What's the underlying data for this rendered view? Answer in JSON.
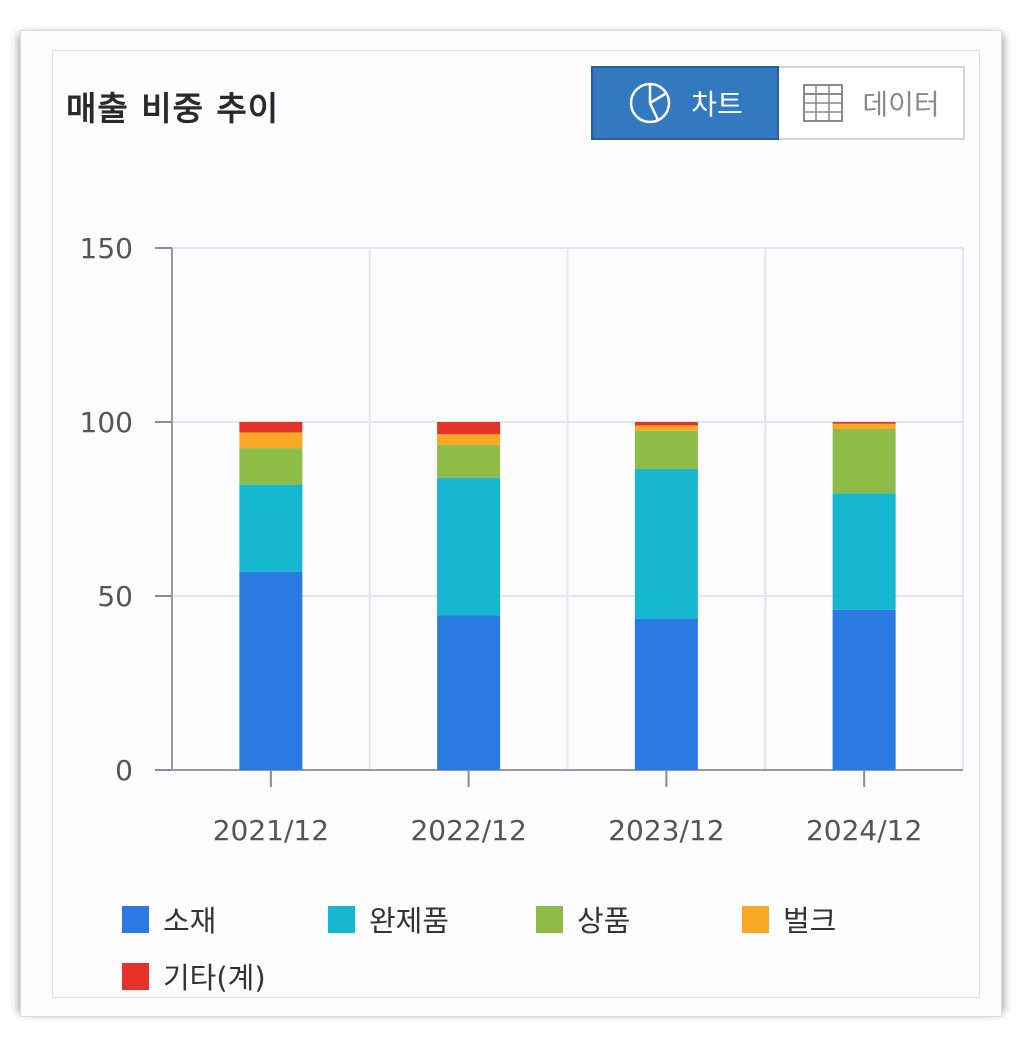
{
  "header": {
    "title": "매출 비중 추이"
  },
  "toggle": {
    "chart_label": "차트",
    "data_label": "데이터",
    "active": "chart",
    "chart_icon": "pie-chart-icon",
    "data_icon": "table-grid-icon"
  },
  "colors": {
    "소재": "#2a7ae2",
    "완제품": "#15b7cf",
    "상품": "#8fbb47",
    "벌크": "#f9a825",
    "기타(계)": "#e5322a",
    "active_button": "#3379bf"
  },
  "chart_data": {
    "type": "bar",
    "stacked": true,
    "title": "매출 비중 추이",
    "xlabel": "",
    "ylabel": "",
    "ylim": [
      0,
      150
    ],
    "yticks": [
      0,
      50,
      100,
      150
    ],
    "grid": true,
    "legend_position": "bottom",
    "categories": [
      "2021/12",
      "2022/12",
      "2023/12",
      "2024/12"
    ],
    "series": [
      {
        "name": "소재",
        "values": [
          57.0,
          44.5,
          43.5,
          46.0
        ]
      },
      {
        "name": "완제품",
        "values": [
          25.0,
          39.5,
          43.0,
          33.5
        ]
      },
      {
        "name": "상품",
        "values": [
          10.5,
          9.5,
          11.0,
          18.5
        ]
      },
      {
        "name": "벌크",
        "values": [
          4.5,
          3.0,
          1.5,
          1.5
        ]
      },
      {
        "name": "기타(계)",
        "values": [
          3.0,
          3.5,
          1.0,
          0.5
        ]
      }
    ]
  }
}
